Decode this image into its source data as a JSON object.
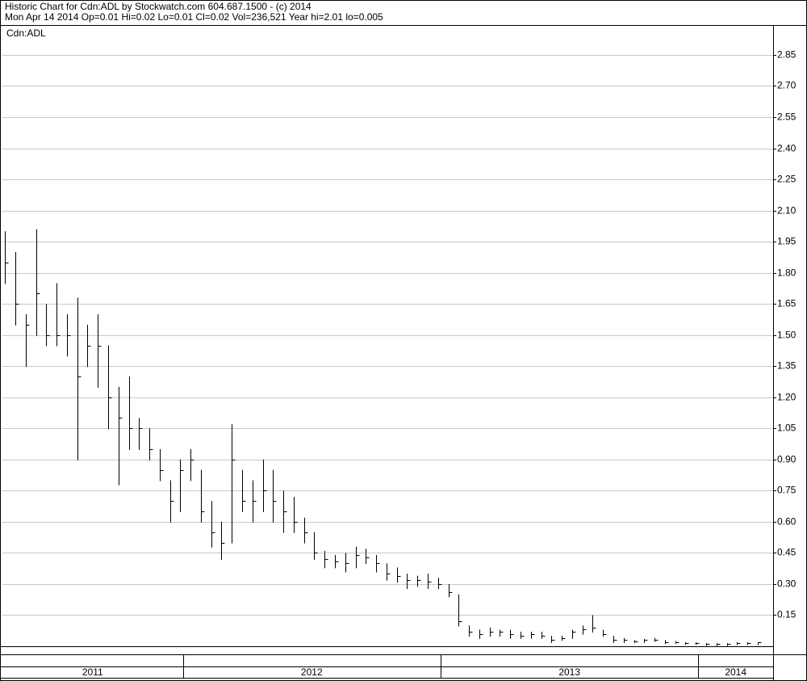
{
  "chart_data": {
    "type": "ohlc",
    "title": "Historic Chart for Cdn:ADL by Stockwatch.com 604.687.1500 - (c) 2014",
    "subtitle": "Mon Apr 14 2014  Op=0.01  Hi=0.02  Lo=0.01  Cl=0.02  Vol=236,521  Year hi=2.01  lo=0.005",
    "series": [
      {
        "name": "Cdn:ADL",
        "color": "#000000",
        "x": [
          2011.31,
          2011.35,
          2011.39,
          2011.43,
          2011.47,
          2011.51,
          2011.55,
          2011.59,
          2011.63,
          2011.67,
          2011.71,
          2011.75,
          2011.79,
          2011.83,
          2011.87,
          2011.91,
          2011.95,
          2011.99,
          2012.03,
          2012.07,
          2012.11,
          2012.15,
          2012.19,
          2012.23,
          2012.27,
          2012.31,
          2012.35,
          2012.39,
          2012.43,
          2012.47,
          2012.51,
          2012.55,
          2012.59,
          2012.63,
          2012.67,
          2012.71,
          2012.75,
          2012.79,
          2012.83,
          2012.87,
          2012.91,
          2012.95,
          2012.99,
          2013.03,
          2013.07,
          2013.11,
          2013.15,
          2013.19,
          2013.23,
          2013.27,
          2013.31,
          2013.35,
          2013.39,
          2013.43,
          2013.47,
          2013.51,
          2013.55,
          2013.59,
          2013.63,
          2013.67,
          2013.71,
          2013.75,
          2013.79,
          2013.83,
          2013.87,
          2013.91,
          2013.95,
          2013.99,
          2014.03,
          2014.07,
          2014.11,
          2014.15,
          2014.19,
          2014.23
        ],
        "high": [
          2.0,
          1.9,
          1.6,
          2.01,
          1.65,
          1.75,
          1.6,
          1.68,
          1.55,
          1.6,
          1.45,
          1.25,
          1.3,
          1.1,
          1.05,
          0.95,
          0.8,
          0.9,
          0.95,
          0.85,
          0.7,
          0.6,
          1.07,
          0.85,
          0.8,
          0.9,
          0.85,
          0.75,
          0.72,
          0.62,
          0.55,
          0.46,
          0.44,
          0.45,
          0.48,
          0.47,
          0.44,
          0.4,
          0.38,
          0.35,
          0.34,
          0.35,
          0.33,
          0.3,
          0.25,
          0.1,
          0.08,
          0.09,
          0.08,
          0.08,
          0.07,
          0.07,
          0.07,
          0.05,
          0.05,
          0.08,
          0.1,
          0.15,
          0.08,
          0.05,
          0.04,
          0.03,
          0.035,
          0.04,
          0.03,
          0.025,
          0.02,
          0.02,
          0.015,
          0.015,
          0.015,
          0.02,
          0.02,
          0.02
        ],
        "low": [
          1.75,
          1.55,
          1.35,
          1.5,
          1.45,
          1.45,
          1.4,
          0.9,
          1.35,
          1.25,
          1.05,
          0.78,
          0.95,
          0.95,
          0.9,
          0.8,
          0.6,
          0.65,
          0.8,
          0.6,
          0.48,
          0.42,
          0.5,
          0.65,
          0.6,
          0.65,
          0.6,
          0.55,
          0.55,
          0.5,
          0.42,
          0.38,
          0.38,
          0.36,
          0.38,
          0.4,
          0.36,
          0.32,
          0.31,
          0.28,
          0.29,
          0.28,
          0.28,
          0.24,
          0.1,
          0.05,
          0.04,
          0.05,
          0.05,
          0.04,
          0.04,
          0.04,
          0.04,
          0.02,
          0.03,
          0.04,
          0.06,
          0.07,
          0.05,
          0.02,
          0.02,
          0.02,
          0.02,
          0.025,
          0.015,
          0.015,
          0.01,
          0.01,
          0.005,
          0.005,
          0.005,
          0.01,
          0.01,
          0.01
        ],
        "close": [
          1.85,
          1.65,
          1.55,
          1.7,
          1.5,
          1.5,
          1.5,
          1.3,
          1.45,
          1.45,
          1.2,
          1.1,
          1.05,
          1.05,
          0.95,
          0.85,
          0.7,
          0.85,
          0.9,
          0.65,
          0.55,
          0.5,
          0.9,
          0.7,
          0.7,
          0.75,
          0.7,
          0.65,
          0.6,
          0.55,
          0.45,
          0.42,
          0.41,
          0.4,
          0.44,
          0.43,
          0.4,
          0.35,
          0.34,
          0.32,
          0.32,
          0.31,
          0.3,
          0.26,
          0.12,
          0.07,
          0.06,
          0.07,
          0.07,
          0.06,
          0.05,
          0.06,
          0.05,
          0.03,
          0.04,
          0.07,
          0.08,
          0.09,
          0.06,
          0.03,
          0.03,
          0.025,
          0.03,
          0.03,
          0.02,
          0.02,
          0.015,
          0.015,
          0.01,
          0.01,
          0.01,
          0.015,
          0.015,
          0.02
        ]
      }
    ],
    "xlim": [
      2011.3,
      2014.29
    ],
    "year_labels": [
      2011,
      2012,
      2013,
      2014
    ],
    "ylim": [
      0,
      2.99
    ],
    "yticks": [
      0.15,
      {
        "value": 0.3,
        "label": "0.30"
      },
      0.45,
      {
        "value": 0.6,
        "label": "0.60"
      },
      0.75,
      {
        "value": 0.9,
        "label": "0.90"
      },
      1.05,
      {
        "value": 1.2,
        "label": "1.20"
      },
      1.35,
      {
        "value": 1.5,
        "label": "1.50"
      },
      1.65,
      {
        "value": 1.8,
        "label": "1.80"
      },
      1.95,
      {
        "value": 2.1,
        "label": "2.10"
      },
      2.25,
      {
        "value": 2.4,
        "label": "2.40"
      },
      2.55,
      {
        "value": 2.7,
        "label": "2.70"
      },
      2.85
    ],
    "grid": true
  }
}
